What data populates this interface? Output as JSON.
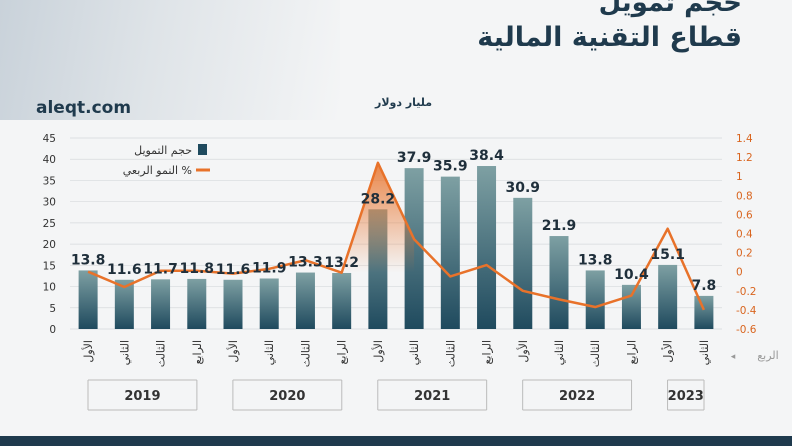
{
  "header": {
    "title_line1": "حجم تمويل",
    "title_line2": "قطاع التقنية المالية",
    "site": "aleqt.com",
    "unit": "مليار دولار"
  },
  "legend": {
    "bar_label": "حجم التمويل",
    "line_label": "النمو الربعي %"
  },
  "colors": {
    "bar_top": "#7ea0a3",
    "bar_bottom": "#1f4a5e",
    "line": "#e8722a",
    "footer": "#1f3a4d"
  },
  "chart_data": {
    "type": "bar",
    "categories": [
      "الأول",
      "الثاني",
      "الثالث",
      "الرابع",
      "الأول",
      "الثاني",
      "الثالث",
      "الرابع",
      "الأول",
      "الثاني",
      "الثالث",
      "الرابع",
      "الأول",
      "الثاني",
      "الثالث",
      "الرابع",
      "الأول",
      "الثاني"
    ],
    "years": [
      {
        "label": "2019",
        "count": 4
      },
      {
        "label": "2020",
        "count": 4
      },
      {
        "label": "2021",
        "count": 4
      },
      {
        "label": "2022",
        "count": 4
      },
      {
        "label": "2023",
        "count": 2
      }
    ],
    "quarter_axis_label": "الربع",
    "series": [
      {
        "name": "حجم التمويل",
        "type": "bar",
        "axis": "left",
        "values": [
          13.8,
          11.6,
          11.7,
          11.8,
          11.6,
          11.9,
          13.3,
          13.2,
          28.2,
          37.9,
          35.9,
          38.4,
          30.9,
          21.9,
          13.8,
          10.4,
          15.1,
          7.8
        ]
      },
      {
        "name": "النمو الربعي %",
        "type": "line",
        "axis": "right",
        "values": [
          0.0,
          -0.16,
          0.01,
          0.01,
          -0.02,
          0.03,
          0.12,
          -0.01,
          1.14,
          0.34,
          -0.05,
          0.07,
          -0.2,
          -0.29,
          -0.37,
          -0.25,
          0.45,
          -0.4
        ]
      }
    ],
    "y_left": {
      "min": 0,
      "max": 45,
      "ticks": [
        0,
        5,
        10,
        15,
        20,
        25,
        30,
        35,
        40,
        45
      ]
    },
    "y_right": {
      "min": -0.6,
      "max": 1.4,
      "ticks": [
        "1.4",
        "1.2",
        "1",
        "0.8",
        "0.6",
        "0.4",
        "0.2",
        "0",
        "-0.2",
        "-0.4",
        "-0.6"
      ],
      "tick_values": [
        1.4,
        1.2,
        1,
        0.8,
        0.6,
        0.4,
        0.2,
        0,
        -0.2,
        -0.4,
        -0.6
      ]
    },
    "legend_position": "top-left"
  }
}
